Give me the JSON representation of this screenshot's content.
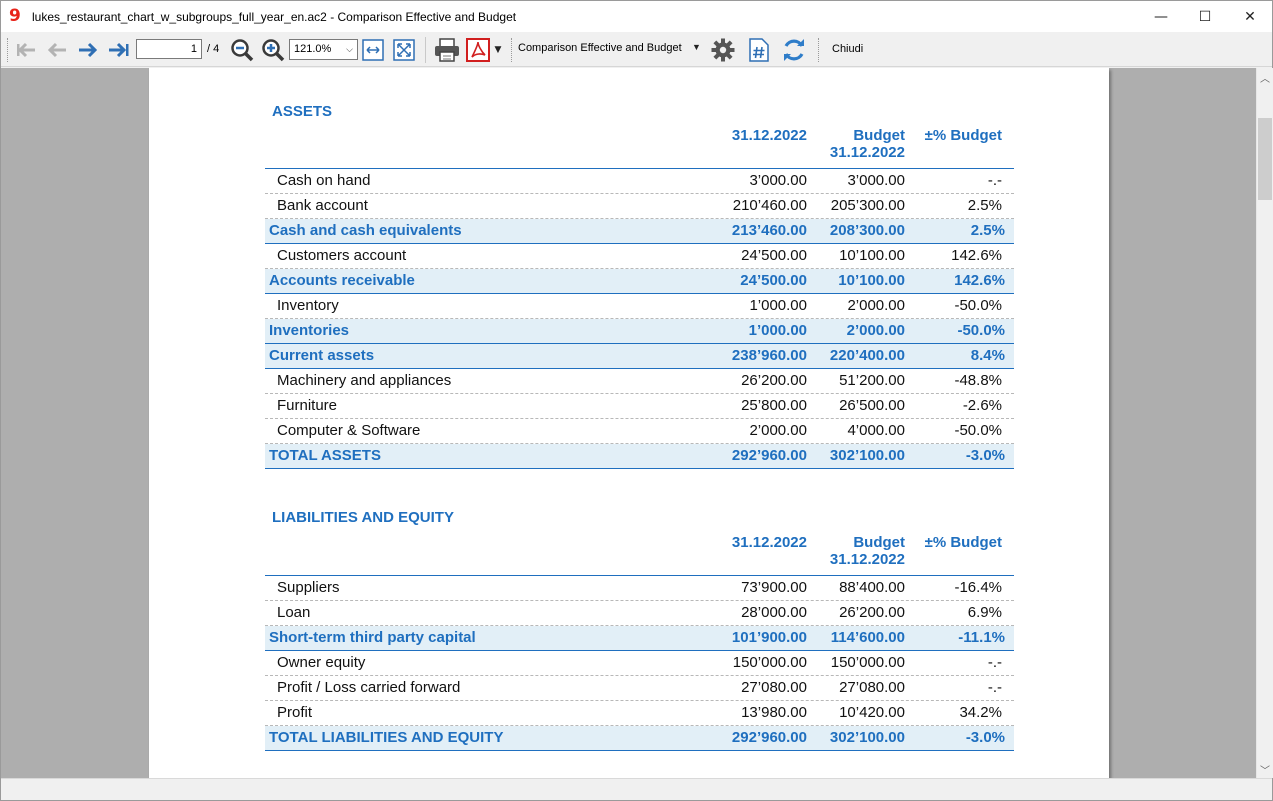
{
  "window": {
    "title": "lukes_restaurant_chart_w_subgroups_full_year_en.ac2 - Comparison Effective and Budget",
    "logo_glyph": "9",
    "minimize": "—",
    "maximize": "☐",
    "close": "✕"
  },
  "toolbar": {
    "page_current": "1",
    "page_total": "/ 4",
    "zoom": "121.0%",
    "report_name": "Comparison Effective and Budget",
    "close_label": "Chiudi",
    "icons": [
      "first-page-icon",
      "prev-page-icon",
      "next-page-icon",
      "last-page-icon",
      "zoom-out-icon",
      "zoom-in-icon",
      "fit-width-icon",
      "fit-page-icon",
      "print-icon",
      "pdf-icon",
      "settings-icon",
      "page-number-icon",
      "refresh-icon"
    ]
  },
  "colors": {
    "accent": "#1f6fbf",
    "subtotal_bg": "#e2eff7"
  },
  "assets": {
    "title": "ASSETS",
    "headers": {
      "col1": "31.12.2022",
      "col2_line1": "Budget",
      "col2_line2": "31.12.2022",
      "col3": "±% Budget"
    },
    "rows": [
      {
        "label": "Cash on hand",
        "v1": "3’000.00",
        "v2": "3’000.00",
        "v3": "-.-",
        "sub": false
      },
      {
        "label": "Bank account",
        "v1": "210’460.00",
        "v2": "205’300.00",
        "v3": "2.5%",
        "sub": false
      },
      {
        "label": "Cash and cash equivalents",
        "v1": "213’460.00",
        "v2": "208’300.00",
        "v3": "2.5%",
        "sub": true
      },
      {
        "label": "Customers account",
        "v1": "24’500.00",
        "v2": "10’100.00",
        "v3": "142.6%",
        "sub": false
      },
      {
        "label": "Accounts receivable",
        "v1": "24’500.00",
        "v2": "10’100.00",
        "v3": "142.6%",
        "sub": true
      },
      {
        "label": "Inventory",
        "v1": "1’000.00",
        "v2": "2’000.00",
        "v3": "-50.0%",
        "sub": false
      },
      {
        "label": "Inventories",
        "v1": "1’000.00",
        "v2": "2’000.00",
        "v3": "-50.0%",
        "sub": true
      },
      {
        "label": "Current assets",
        "v1": "238’960.00",
        "v2": "220’400.00",
        "v3": "8.4%",
        "sub": true
      },
      {
        "label": "Machinery and appliances",
        "v1": "26’200.00",
        "v2": "51’200.00",
        "v3": "-48.8%",
        "sub": false
      },
      {
        "label": "Furniture",
        "v1": "25’800.00",
        "v2": "26’500.00",
        "v3": "-2.6%",
        "sub": false
      },
      {
        "label": "Computer & Software",
        "v1": "2’000.00",
        "v2": "4’000.00",
        "v3": "-50.0%",
        "sub": false
      },
      {
        "label": "TOTAL ASSETS",
        "v1": "292’960.00",
        "v2": "302’100.00",
        "v3": "-3.0%",
        "sub": true
      }
    ]
  },
  "liabilities": {
    "title": "LIABILITIES AND EQUITY",
    "headers": {
      "col1": "31.12.2022",
      "col2_line1": "Budget",
      "col2_line2": "31.12.2022",
      "col3": "±% Budget"
    },
    "rows": [
      {
        "label": "Suppliers",
        "v1": "73’900.00",
        "v2": "88’400.00",
        "v3": "-16.4%",
        "sub": false
      },
      {
        "label": "Loan",
        "v1": "28’000.00",
        "v2": "26’200.00",
        "v3": "6.9%",
        "sub": false
      },
      {
        "label": "Short-term third party capital",
        "v1": "101’900.00",
        "v2": "114’600.00",
        "v3": "-11.1%",
        "sub": true
      },
      {
        "label": "Owner equity",
        "v1": "150’000.00",
        "v2": "150’000.00",
        "v3": "-.-",
        "sub": false
      },
      {
        "label": "Profit / Loss carried forward",
        "v1": "27’080.00",
        "v2": "27’080.00",
        "v3": "-.-",
        "sub": false
      },
      {
        "label": "Profit",
        "v1": "13’980.00",
        "v2": "10’420.00",
        "v3": "34.2%",
        "sub": false
      },
      {
        "label": "TOTAL LIABILITIES AND EQUITY",
        "v1": "292’960.00",
        "v2": "302’100.00",
        "v3": "-3.0%",
        "sub": true
      }
    ]
  }
}
